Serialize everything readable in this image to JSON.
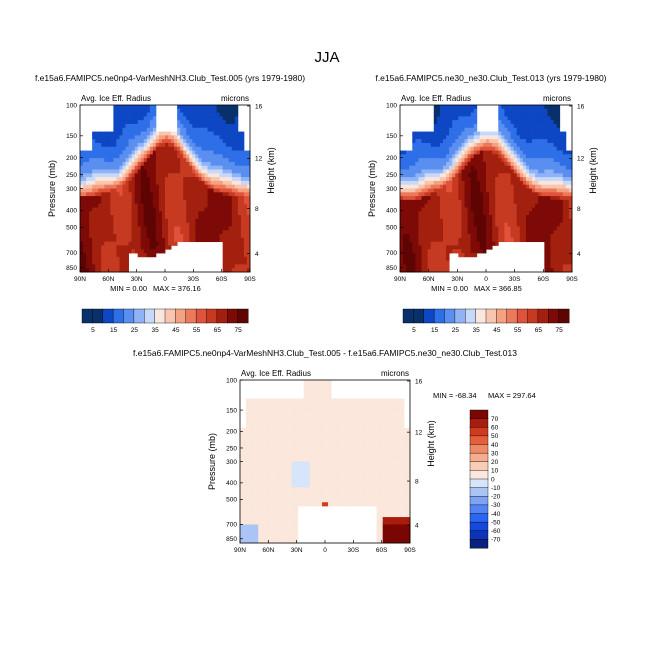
{
  "page_title": "JJA",
  "chart_data": [
    {
      "type": "contour",
      "id": "p1",
      "title": "f.e15a6.FAMIPC5.ne0np4-VarMeshNH3.Club_Test.005 (yrs 1979-1980)",
      "variable_label": "Avg. Ice Eff. Radius",
      "units_label": "microns",
      "ylabel": "Pressure (mb)",
      "ylabel_right": "Height (km)",
      "y_ticks": [
        "100",
        "150",
        "200",
        "250",
        "300",
        "400",
        "500",
        "700",
        "850"
      ],
      "y_right_ticks": [
        "16",
        "12",
        "8",
        "4"
      ],
      "x_ticks": [
        "90N",
        "60N",
        "30N",
        "0",
        "30S",
        "60S",
        "90S"
      ],
      "min_text": "MIN =   0.00",
      "max_text": "MAX = 376.16",
      "levels": [
        5,
        15,
        25,
        35,
        45,
        55,
        65,
        75
      ],
      "colorbar_labels": [
        "5",
        "15",
        "25",
        "35",
        "45",
        "55",
        "65",
        "75"
      ]
    },
    {
      "type": "contour",
      "id": "p2",
      "title": "f.e15a6.FAMIPC5.ne30_ne30.Club_Test.013 (yrs 1979-1980)",
      "variable_label": "Avg. Ice Eff. Radius",
      "units_label": "microns",
      "ylabel": "Pressure (mb)",
      "ylabel_right": "Height (km)",
      "y_ticks": [
        "100",
        "150",
        "200",
        "250",
        "300",
        "400",
        "500",
        "700",
        "850"
      ],
      "y_right_ticks": [
        "16",
        "12",
        "8",
        "4"
      ],
      "x_ticks": [
        "90N",
        "60N",
        "30N",
        "0",
        "30S",
        "60S",
        "90S"
      ],
      "min_text": "MIN =   0.00",
      "max_text": "MAX = 366.85",
      "levels": [
        5,
        15,
        25,
        35,
        45,
        55,
        65,
        75
      ],
      "colorbar_labels": [
        "5",
        "15",
        "25",
        "35",
        "45",
        "55",
        "65",
        "75"
      ]
    },
    {
      "type": "contour",
      "id": "p3",
      "title": "f.e15a6.FAMIPC5.ne0np4-VarMeshNH3.Club_Test.005 - f.e15a6.FAMIPC5.ne30_ne30.Club_Test.013",
      "variable_label": "Avg. Ice Eff. Radius",
      "units_label": "microns",
      "ylabel": "Pressure (mb)",
      "ylabel_right": "Height (km)",
      "y_ticks": [
        "100",
        "150",
        "200",
        "250",
        "300",
        "400",
        "500",
        "700",
        "850"
      ],
      "y_right_ticks": [
        "16",
        "12",
        "8",
        "4"
      ],
      "x_ticks": [
        "90N",
        "60N",
        "30N",
        "0",
        "30S",
        "60S",
        "90S"
      ],
      "min_text": "MIN = -68.34",
      "max_text": "MAX = 297.64",
      "levels": [
        -70,
        -60,
        -50,
        -40,
        -30,
        -20,
        -10,
        0,
        10,
        20,
        30,
        40,
        50,
        60,
        70
      ],
      "colorbar_labels": [
        "70",
        "60",
        "50",
        "40",
        "30",
        "20",
        "10",
        "0",
        "-10",
        "-20",
        "-30",
        "-40",
        "-50",
        "-60",
        "-70"
      ]
    }
  ],
  "colors": {
    "abs_palette": [
      "#08306b",
      "#0d47c4",
      "#2e6fe8",
      "#5a8ff0",
      "#8fb3f5",
      "#c7d9fa",
      "#f9e6dc",
      "#f8c6ae",
      "#f4a282",
      "#ec7a5a",
      "#e0533a",
      "#c73a22",
      "#a3200f",
      "#7d0a06",
      "#5e0402"
    ],
    "diff_palette": [
      "#08217a",
      "#0b34b8",
      "#1549de",
      "#2c65f0",
      "#5384f3",
      "#7ea3f4",
      "#abc4f6",
      "#d6e5fa",
      "#fbe7dc",
      "#f9cdb5",
      "#f5ae8d",
      "#ef8a66",
      "#e45f3d",
      "#cf3b1f",
      "#a81d0d",
      "#7a0704"
    ],
    "axis": "#000000",
    "background": "#ffffff"
  }
}
